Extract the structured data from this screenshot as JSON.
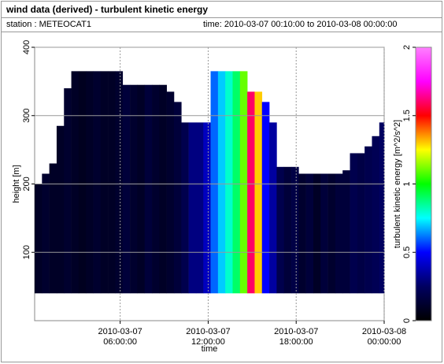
{
  "header": {
    "title": "wind data (derived) - turbulent kinetic energy",
    "station": "station : METEOCAT1",
    "time": "time: 2010-03-07 00:10:00 to 2010-03-08 00:00:00"
  },
  "chart_data": {
    "type": "heatmap-columns",
    "x_label": "time",
    "y_label": "height [m]",
    "color_label": "turbulent kinetic energy [m^2/s^2]",
    "x": [
      "2010-03-07 00:10:00",
      "2010-03-07 00:40:00",
      "2010-03-07 01:10:00",
      "2010-03-07 01:40:00",
      "2010-03-07 02:10:00",
      "2010-03-07 02:40:00",
      "2010-03-07 03:10:00",
      "2010-03-07 03:40:00",
      "2010-03-07 04:10:00",
      "2010-03-07 04:40:00",
      "2010-03-07 05:10:00",
      "2010-03-07 05:40:00",
      "2010-03-07 06:10:00",
      "2010-03-07 06:40:00",
      "2010-03-07 07:10:00",
      "2010-03-07 07:40:00",
      "2010-03-07 08:10:00",
      "2010-03-07 08:40:00",
      "2010-03-07 09:10:00",
      "2010-03-07 09:40:00",
      "2010-03-07 10:10:00",
      "2010-03-07 10:40:00",
      "2010-03-07 11:10:00",
      "2010-03-07 11:40:00",
      "2010-03-07 12:10:00",
      "2010-03-07 12:40:00",
      "2010-03-07 13:10:00",
      "2010-03-07 13:40:00",
      "2010-03-07 14:10:00",
      "2010-03-07 14:40:00",
      "2010-03-07 15:10:00",
      "2010-03-07 15:40:00",
      "2010-03-07 16:10:00",
      "2010-03-07 16:40:00",
      "2010-03-07 17:10:00",
      "2010-03-07 17:40:00",
      "2010-03-07 18:10:00",
      "2010-03-07 18:40:00",
      "2010-03-07 19:10:00",
      "2010-03-07 19:40:00",
      "2010-03-07 20:10:00",
      "2010-03-07 20:40:00",
      "2010-03-07 21:10:00",
      "2010-03-07 21:40:00",
      "2010-03-07 22:10:00",
      "2010-03-07 22:40:00",
      "2010-03-07 23:10:00",
      "2010-03-07 23:40:00"
    ],
    "bottom": 40,
    "tops": [
      200,
      215,
      230,
      285,
      340,
      365,
      365,
      365,
      365,
      365,
      365,
      365,
      345,
      345,
      345,
      345,
      345,
      345,
      335,
      320,
      290,
      290,
      290,
      290,
      365,
      365,
      365,
      365,
      365,
      335,
      335,
      320,
      290,
      225,
      225,
      225,
      215,
      215,
      215,
      215,
      215,
      215,
      220,
      245,
      245,
      255,
      270,
      290
    ],
    "values": [
      0.1,
      0.12,
      0.1,
      0.1,
      0.12,
      0.1,
      0.08,
      0.1,
      0.12,
      0.1,
      0.1,
      0.12,
      0.15,
      0.12,
      0.1,
      0.15,
      0.12,
      0.1,
      0.12,
      0.15,
      0.2,
      0.3,
      0.3,
      0.4,
      0.6,
      0.7,
      0.8,
      0.9,
      1.1,
      1.6,
      1.3,
      0.5,
      0.35,
      0.2,
      0.15,
      0.18,
      0.12,
      0.15,
      0.1,
      0.15,
      0.12,
      0.15,
      0.15,
      0.2,
      0.18,
      0.2,
      0.22,
      0.25
    ],
    "xlim": [
      "2010-03-07 00:10:00",
      "2010-03-08 00:00:00"
    ],
    "xticks": [
      {
        "value": "2010-03-07 06:00:00",
        "label": "2010-03-07\n06:00:00"
      },
      {
        "value": "2010-03-07 12:00:00",
        "label": "2010-03-07\n12:00:00"
      },
      {
        "value": "2010-03-07 18:00:00",
        "label": "2010-03-07\n18:00:00"
      },
      {
        "value": "2010-03-08 00:00:00",
        "label": "2010-03-08\n00:00:00"
      }
    ],
    "ylim": [
      0,
      400
    ],
    "yticks": [
      100,
      200,
      300,
      400
    ],
    "clim": [
      0,
      2
    ],
    "cticks": [
      0,
      0.5,
      1,
      1.5,
      2
    ],
    "colormap": [
      "#000000",
      "#000060",
      "#0000ff",
      "#00ffff",
      "#00ff00",
      "#ffff00",
      "#ff0000",
      "#ff00ff",
      "#ff80ff"
    ],
    "grid": true
  }
}
